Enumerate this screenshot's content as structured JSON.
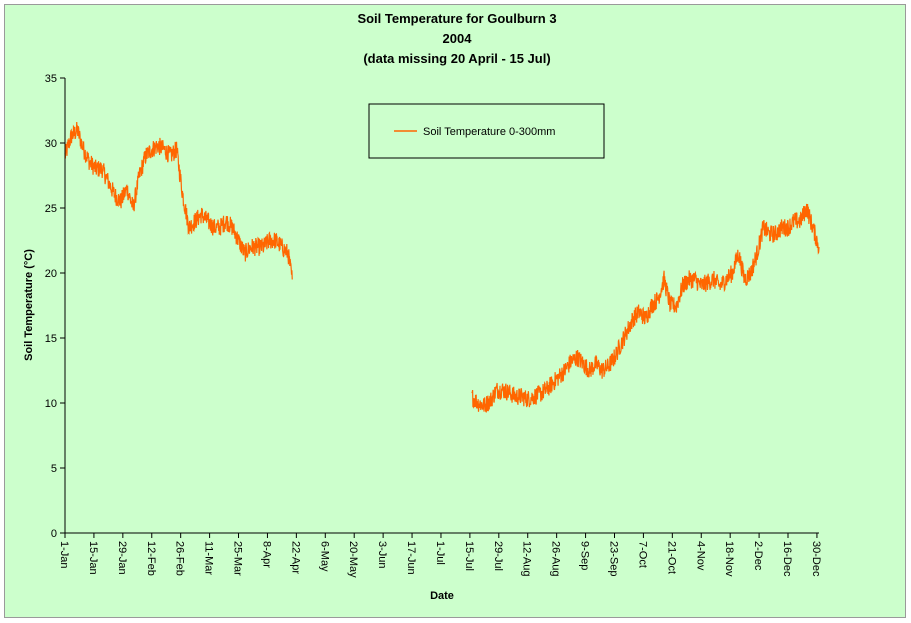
{
  "chart_data": {
    "type": "line",
    "title_lines": [
      "Soil Temperature for Goulburn 3",
      "2004",
      "(data missing 20 April - 15 Jul)"
    ],
    "xlabel": "Date",
    "ylabel": "Soil Temperature (°C)",
    "ylim": [
      0,
      35
    ],
    "y_ticks": [
      "0",
      "5",
      "10",
      "15",
      "20",
      "25",
      "30",
      "35"
    ],
    "x_tick_labels": [
      "1-Jan",
      "15-Jan",
      "29-Jan",
      "12-Feb",
      "26-Feb",
      "11-Mar",
      "25-Mar",
      "8-Apr",
      "22-Apr",
      "6-May",
      "20-May",
      "3-Jun",
      "17-Jun",
      "1-Jul",
      "15-Jul",
      "29-Jul",
      "12-Aug",
      "26-Aug",
      "9-Sep",
      "23-Sep",
      "7-Oct",
      "21-Oct",
      "4-Nov",
      "18-Nov",
      "2-Dec",
      "16-Dec",
      "30-Dec"
    ],
    "legend": {
      "label": "Soil Temperature  0-300mm",
      "placement": "top-center"
    },
    "grid": false,
    "line_color": "#ff6600",
    "background_color": "#ccffcc",
    "series": [
      {
        "name": "Soil Temperature  0-300mm",
        "segments": [
          {
            "x": [
              "2004-01-01",
              "2004-01-04",
              "2004-01-07",
              "2004-01-10",
              "2004-01-13",
              "2004-01-16",
              "2004-01-19",
              "2004-01-22",
              "2004-01-25",
              "2004-01-28",
              "2004-01-31",
              "2004-02-03",
              "2004-02-06",
              "2004-02-09",
              "2004-02-12",
              "2004-02-15",
              "2004-02-18",
              "2004-02-21",
              "2004-02-24",
              "2004-02-27",
              "2004-03-01",
              "2004-03-04",
              "2004-03-07",
              "2004-03-10",
              "2004-03-13",
              "2004-03-16",
              "2004-03-19",
              "2004-03-22",
              "2004-03-25",
              "2004-03-28",
              "2004-03-31",
              "2004-04-03",
              "2004-04-06",
              "2004-04-09",
              "2004-04-12",
              "2004-04-15",
              "2004-04-18",
              "2004-04-20"
            ],
            "y": [
              29.0,
              30.5,
              31.0,
              29.5,
              28.5,
              28.0,
              28.0,
              27.0,
              26.0,
              25.5,
              26.5,
              25.0,
              27.5,
              29.0,
              29.5,
              29.8,
              29.5,
              29.0,
              29.5,
              26.0,
              23.5,
              24.0,
              24.5,
              24.0,
              23.5,
              23.5,
              24.0,
              23.5,
              22.5,
              21.5,
              22.0,
              22.0,
              22.0,
              22.5,
              22.5,
              22.0,
              21.5,
              19.5
            ]
          },
          {
            "x": [
              "2004-07-16",
              "2004-07-19",
              "2004-07-22",
              "2004-07-25",
              "2004-07-28",
              "2004-07-31",
              "2004-08-03",
              "2004-08-06",
              "2004-08-09",
              "2004-08-12",
              "2004-08-15",
              "2004-08-18",
              "2004-08-21",
              "2004-08-24",
              "2004-08-27",
              "2004-08-30",
              "2004-09-02",
              "2004-09-05",
              "2004-09-08",
              "2004-09-11",
              "2004-09-14",
              "2004-09-17",
              "2004-09-20",
              "2004-09-23",
              "2004-09-26",
              "2004-09-29",
              "2004-10-02",
              "2004-10-05",
              "2004-10-08",
              "2004-10-11",
              "2004-10-14",
              "2004-10-17",
              "2004-10-20",
              "2004-10-23",
              "2004-10-26",
              "2004-10-29",
              "2004-11-01",
              "2004-11-04",
              "2004-11-07",
              "2004-11-10",
              "2004-11-13",
              "2004-11-16",
              "2004-11-19",
              "2004-11-22",
              "2004-11-25",
              "2004-11-28",
              "2004-12-01",
              "2004-12-04",
              "2004-12-07",
              "2004-12-10",
              "2004-12-13",
              "2004-12-16",
              "2004-12-19",
              "2004-12-22",
              "2004-12-25",
              "2004-12-28",
              "2004-12-31"
            ],
            "y": [
              10.5,
              10.0,
              9.8,
              10.2,
              11.0,
              11.0,
              10.8,
              10.5,
              10.5,
              10.3,
              10.5,
              10.7,
              11.0,
              11.5,
              12.0,
              12.5,
              13.2,
              13.5,
              13.0,
              12.5,
              13.0,
              12.5,
              12.8,
              13.5,
              14.5,
              15.5,
              16.5,
              17.0,
              16.5,
              17.5,
              18.0,
              19.5,
              17.5,
              17.5,
              19.0,
              19.5,
              19.5,
              19.0,
              19.3,
              19.5,
              19.0,
              19.5,
              20.0,
              21.5,
              19.5,
              20.0,
              21.5,
              23.5,
              23.0,
              23.0,
              23.5,
              23.5,
              24.0,
              24.0,
              25.0,
              23.5,
              22.0
            ]
          }
        ]
      }
    ]
  }
}
